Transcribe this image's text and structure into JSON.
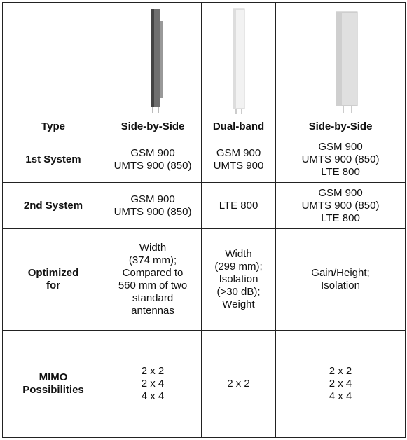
{
  "table": {
    "header": [
      "Type",
      "Side-by-Side",
      "Dual-band",
      "Side-by-Side"
    ],
    "rows": [
      {
        "label": [
          "1st System"
        ],
        "cells": [
          [
            "GSM 900",
            "UMTS 900 (850)"
          ],
          [
            "GSM 900",
            "UMTS 900"
          ],
          [
            "GSM 900",
            "UMTS 900 (850)",
            "LTE 800"
          ]
        ]
      },
      {
        "label": [
          "2nd System"
        ],
        "cells": [
          [
            "GSM 900",
            "UMTS 900 (850)"
          ],
          [
            "LTE 800"
          ],
          [
            "GSM 900",
            "UMTS 900 (850)",
            "LTE 800"
          ]
        ]
      },
      {
        "label": [
          "Optimized",
          "for"
        ],
        "cells": [
          [
            "Width",
            "(374 mm);",
            "Compared to",
            "560 mm of two",
            "standard",
            "antennas"
          ],
          [
            "Width",
            "(299 mm);",
            "Isolation",
            "(>30 dB);",
            "Weight"
          ],
          [
            "Gain/Height;",
            "Isolation"
          ]
        ]
      },
      {
        "label": [
          "MIMO",
          "Possibilities"
        ],
        "cells": [
          [
            "2 x 2",
            "2 x 4",
            "4 x 4"
          ],
          [
            "2 x 2"
          ],
          [
            "2 x 2",
            "2 x 4",
            "4 x 4"
          ]
        ]
      }
    ]
  }
}
